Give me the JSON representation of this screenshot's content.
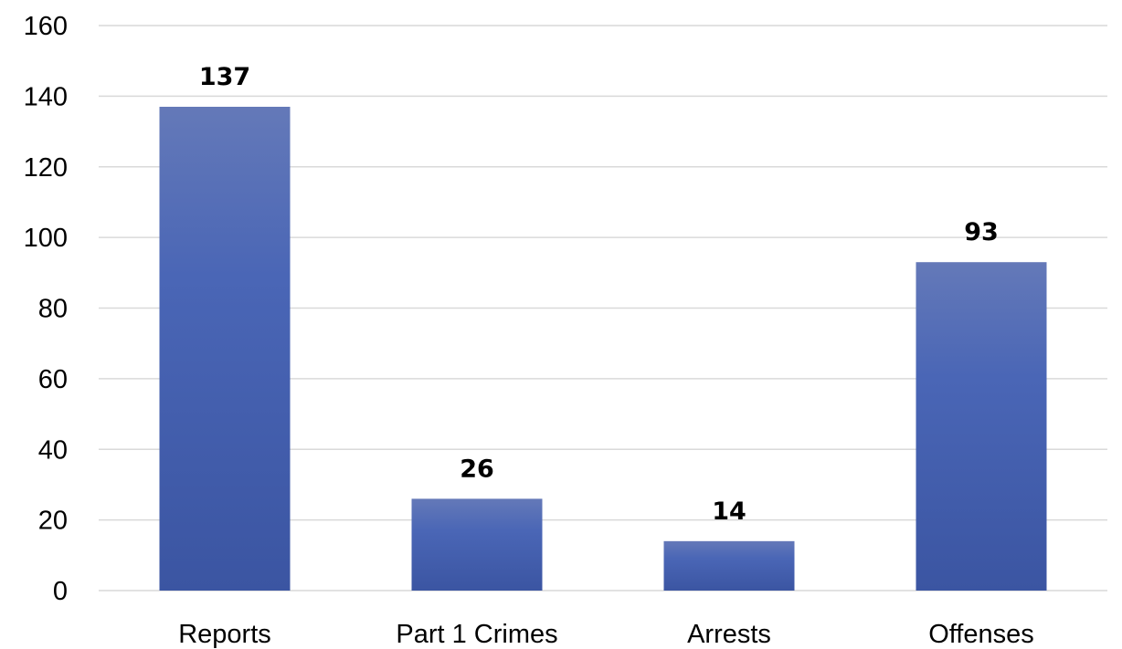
{
  "chart_data": {
    "type": "bar",
    "title": "",
    "xlabel": "",
    "ylabel": "",
    "categories": [
      "Reports",
      "Part 1 Crimes",
      "Arrests",
      "Offenses"
    ],
    "values": [
      137,
      26,
      14,
      93
    ],
    "data_labels": [
      "137",
      "26",
      "14",
      "93"
    ],
    "ylim": [
      0,
      160
    ],
    "yticks": [
      0,
      20,
      40,
      60,
      80,
      100,
      120,
      140,
      160
    ],
    "ytick_labels": [
      "0",
      "20",
      "40",
      "60",
      "80",
      "100",
      "120",
      "140",
      "160"
    ],
    "grid": true,
    "legend": "none",
    "colors": {
      "bar_top": "#6479b8",
      "bar_mid": "#4a66b6",
      "bar_bottom": "#3b55a2",
      "grid": "#d9d9d9"
    }
  }
}
